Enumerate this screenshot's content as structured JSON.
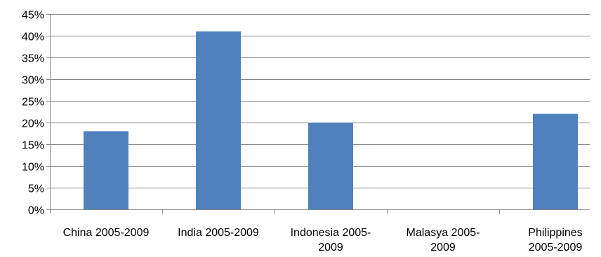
{
  "chart_data": {
    "type": "bar",
    "categories": [
      [
        "China 2005-2009"
      ],
      [
        "India 2005-2009"
      ],
      [
        "Indonesia 2005-",
        "2009"
      ],
      [
        "Malasya 2005-",
        "2009"
      ],
      [
        "Philippines",
        "2005-2009"
      ]
    ],
    "values": [
      18,
      41,
      20,
      0,
      22
    ],
    "ylim": [
      0,
      45
    ],
    "ytick_step": 5,
    "ytick_labels": [
      "0%",
      "5%",
      "10%",
      "15%",
      "20%",
      "25%",
      "30%",
      "35%",
      "40%",
      "45%"
    ],
    "title": "",
    "xlabel": "",
    "ylabel": "",
    "grid": true,
    "legend": "none",
    "bar_color": "#4f81bd",
    "grid_color": "#868686",
    "axis_color": "#868686"
  }
}
